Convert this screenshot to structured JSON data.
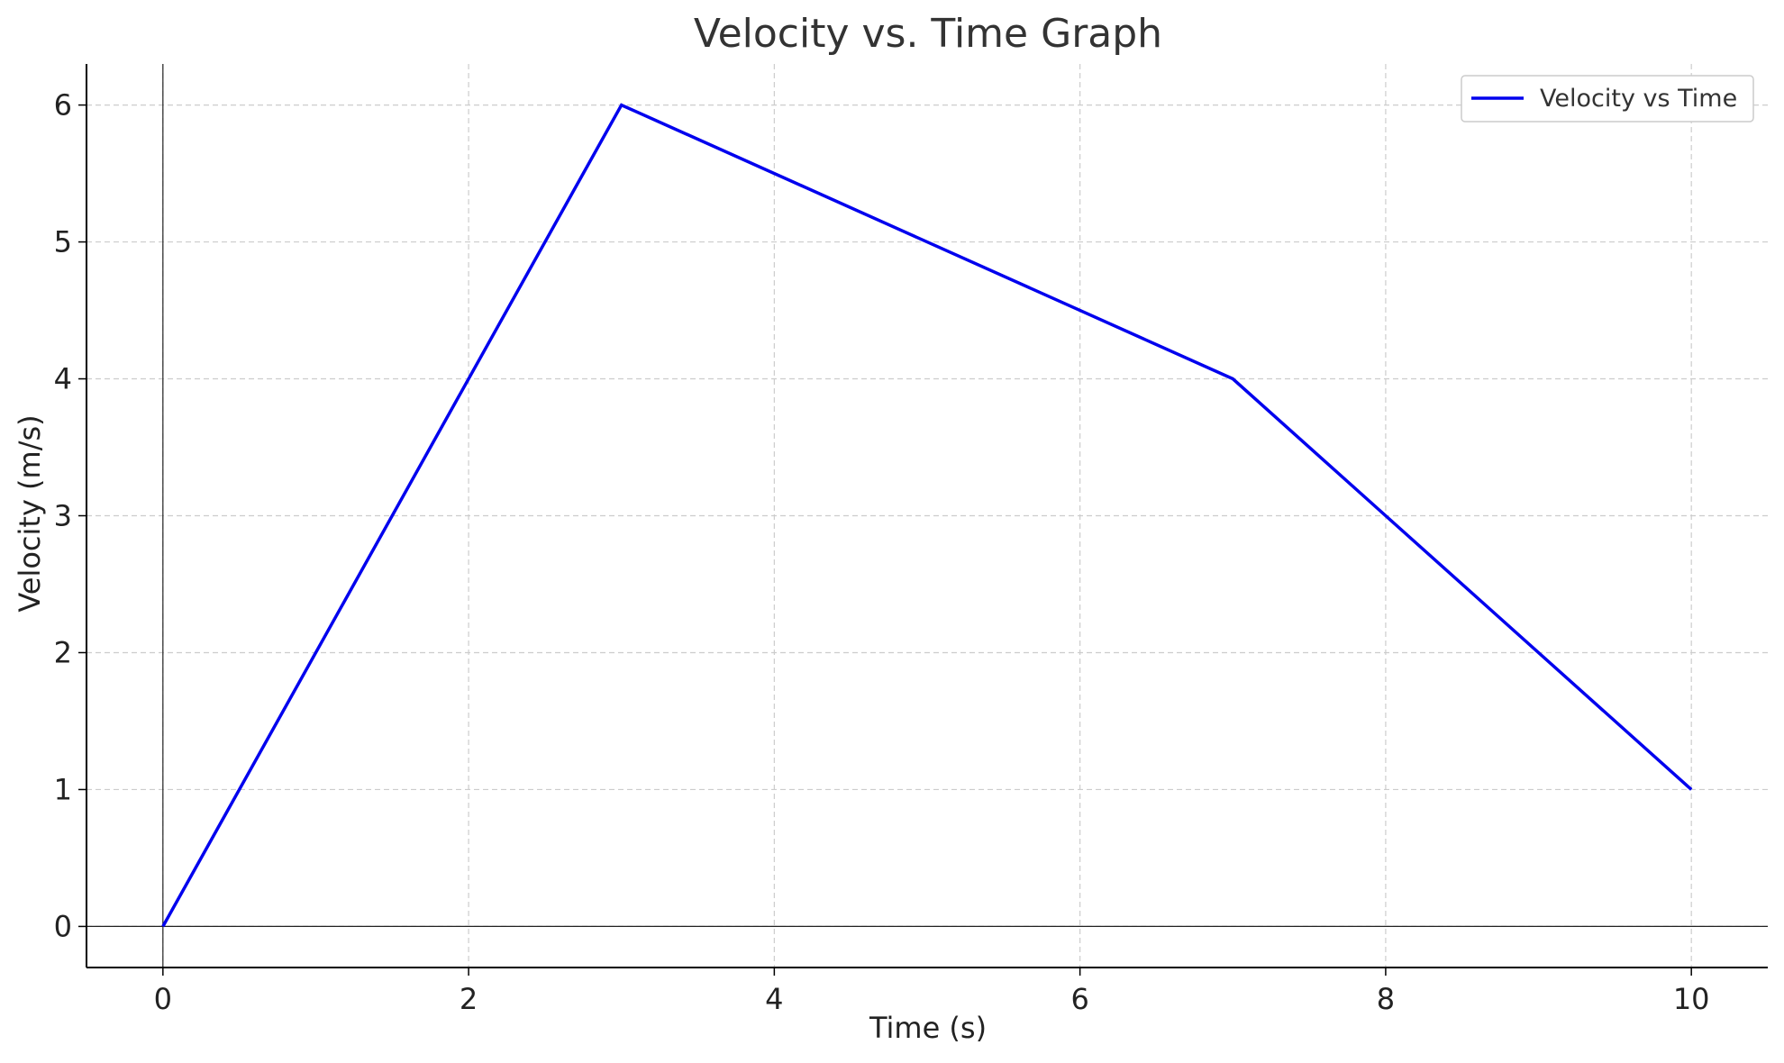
{
  "chart_data": {
    "type": "line",
    "title": "Velocity vs. Time Graph",
    "xlabel": "Time (s)",
    "ylabel": "Velocity (m/s)",
    "xlim": [
      -0.5,
      10.5
    ],
    "ylim": [
      -0.3,
      6.3
    ],
    "xticks": [
      0,
      2,
      4,
      6,
      8,
      10
    ],
    "yticks": [
      0,
      1,
      2,
      3,
      4,
      5,
      6
    ],
    "grid": true,
    "reference_lines": {
      "x": 0,
      "y": 0
    },
    "legend": {
      "position": "top-right"
    },
    "series": [
      {
        "name": "Velocity vs Time",
        "color": "#0000ee",
        "x": [
          0,
          3,
          7,
          10
        ],
        "y": [
          0,
          6,
          4,
          1
        ]
      }
    ]
  }
}
